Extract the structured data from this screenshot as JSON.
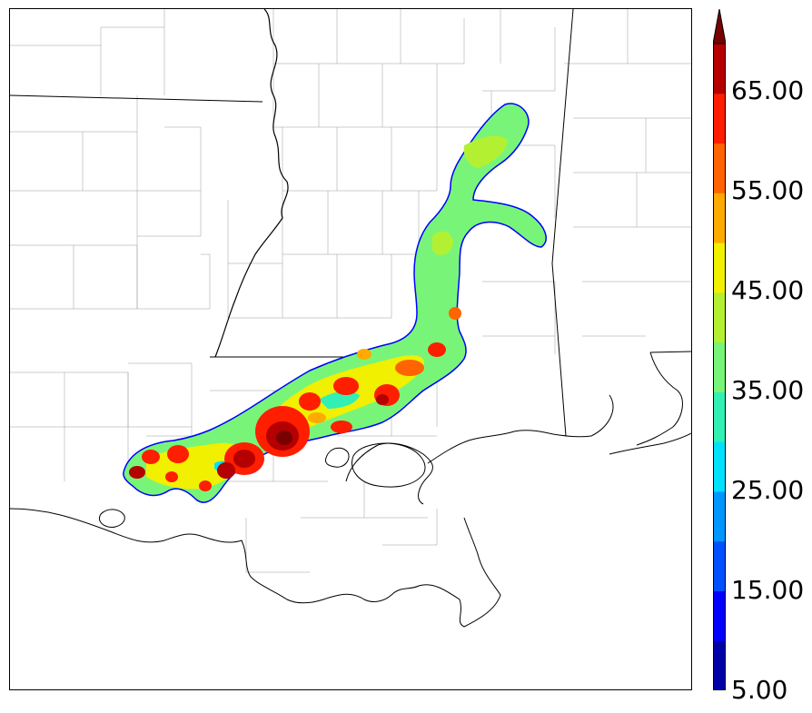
{
  "map": {
    "variable_levels": [
      5,
      10,
      15,
      20,
      25,
      30,
      35,
      40,
      45,
      50,
      55,
      60,
      65,
      70
    ],
    "extend": "max",
    "colors": [
      "#0000a8",
      "#0000ff",
      "#0050ff",
      "#0096ff",
      "#00e1ff",
      "#32f0b4",
      "#78f578",
      "#b4f032",
      "#f0f000",
      "#ffaa00",
      "#ff6400",
      "#ff1e00",
      "#b40000",
      "#780000"
    ]
  },
  "colorbar": {
    "tick_labels": [
      "5.00",
      "15.00",
      "25.00",
      "35.00",
      "45.00",
      "55.00",
      "65.00"
    ],
    "tick_values": [
      5,
      15,
      25,
      35,
      45,
      55,
      65
    ]
  }
}
